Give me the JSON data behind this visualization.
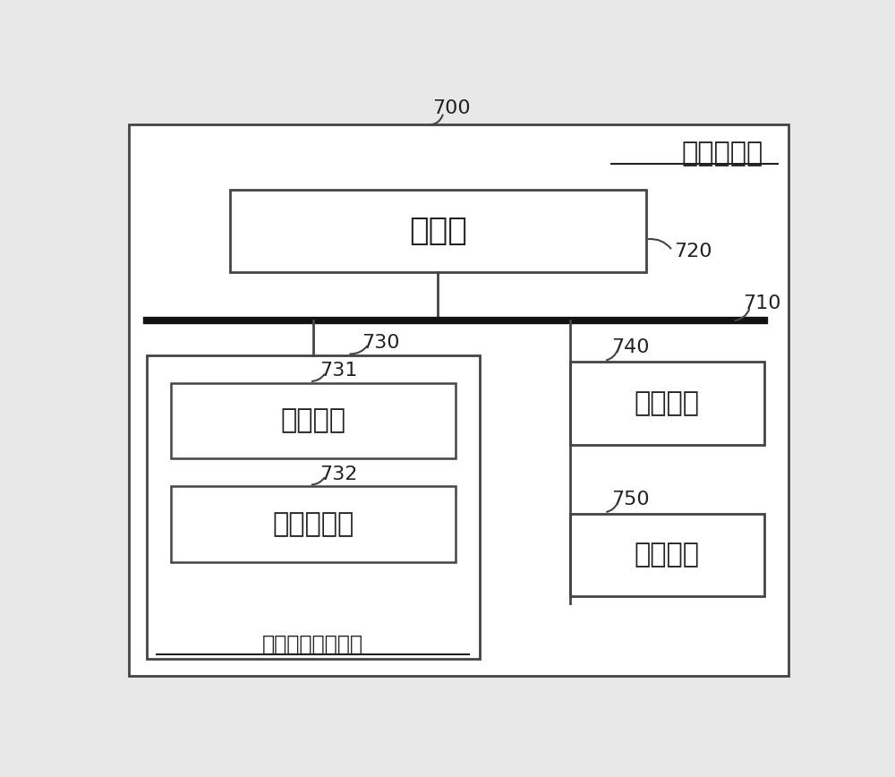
{
  "bg_color": "#e8e8e8",
  "inner_bg_color": "#ffffff",
  "box_color": "#ffffff",
  "box_edge_color": "#444444",
  "thick_line_color": "#111111",
  "thin_line_color": "#444444",
  "text_color": "#222222",
  "outer_label": "700",
  "outer_box_label": "计算机设备",
  "processor_label": "处理器",
  "processor_ref": "720",
  "bus_ref": "710",
  "storage_box_label": "非易失性存储介质",
  "storage_box_ref": "730",
  "os_label": "操作系统",
  "os_ref": "731",
  "program_label": "计算机程序",
  "program_ref": "732",
  "memory_label": "内存储器",
  "memory_ref": "740",
  "network_label": "网络接口",
  "network_ref": "750",
  "font_size_large": 26,
  "font_size_medium": 22,
  "font_size_ref": 16
}
